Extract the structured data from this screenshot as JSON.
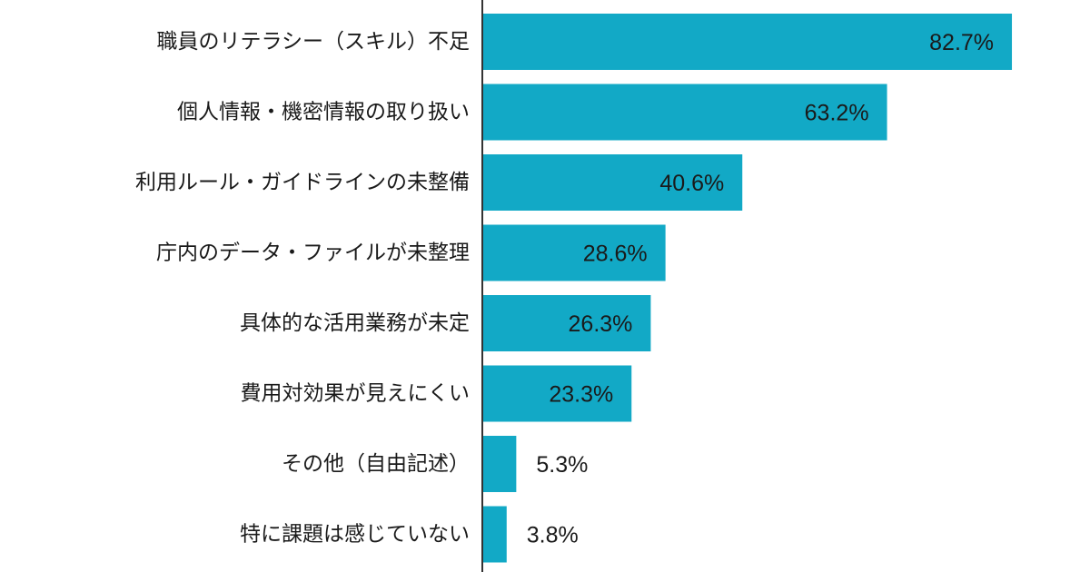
{
  "chart_data": {
    "type": "bar",
    "orientation": "horizontal",
    "title": "",
    "xlabel": "",
    "ylabel": "",
    "categories": [
      "職員のリテラシー（スキル）不足",
      "個人情報・機密情報の取り扱い",
      "利用ルール・ガイドラインの未整備",
      "庁内のデータ・ファイルが未整理",
      "具体的な活用業務が未定",
      "費用対効果が見えにくい",
      "その他（自由記述）",
      "特に課題は感じていない"
    ],
    "values": [
      82.7,
      63.2,
      40.6,
      28.6,
      26.3,
      23.3,
      5.3,
      3.8
    ],
    "value_labels": [
      "82.7%",
      "63.2%",
      "40.6%",
      "28.6%",
      "26.3%",
      "23.3%",
      "5.3%",
      "3.8%"
    ],
    "unit": "%",
    "xlim": [
      0,
      100
    ],
    "grid": false,
    "legend": "none",
    "bar_color": "#12a9c6",
    "axis_color": "#333333",
    "text_color": "#1a1a1a"
  }
}
